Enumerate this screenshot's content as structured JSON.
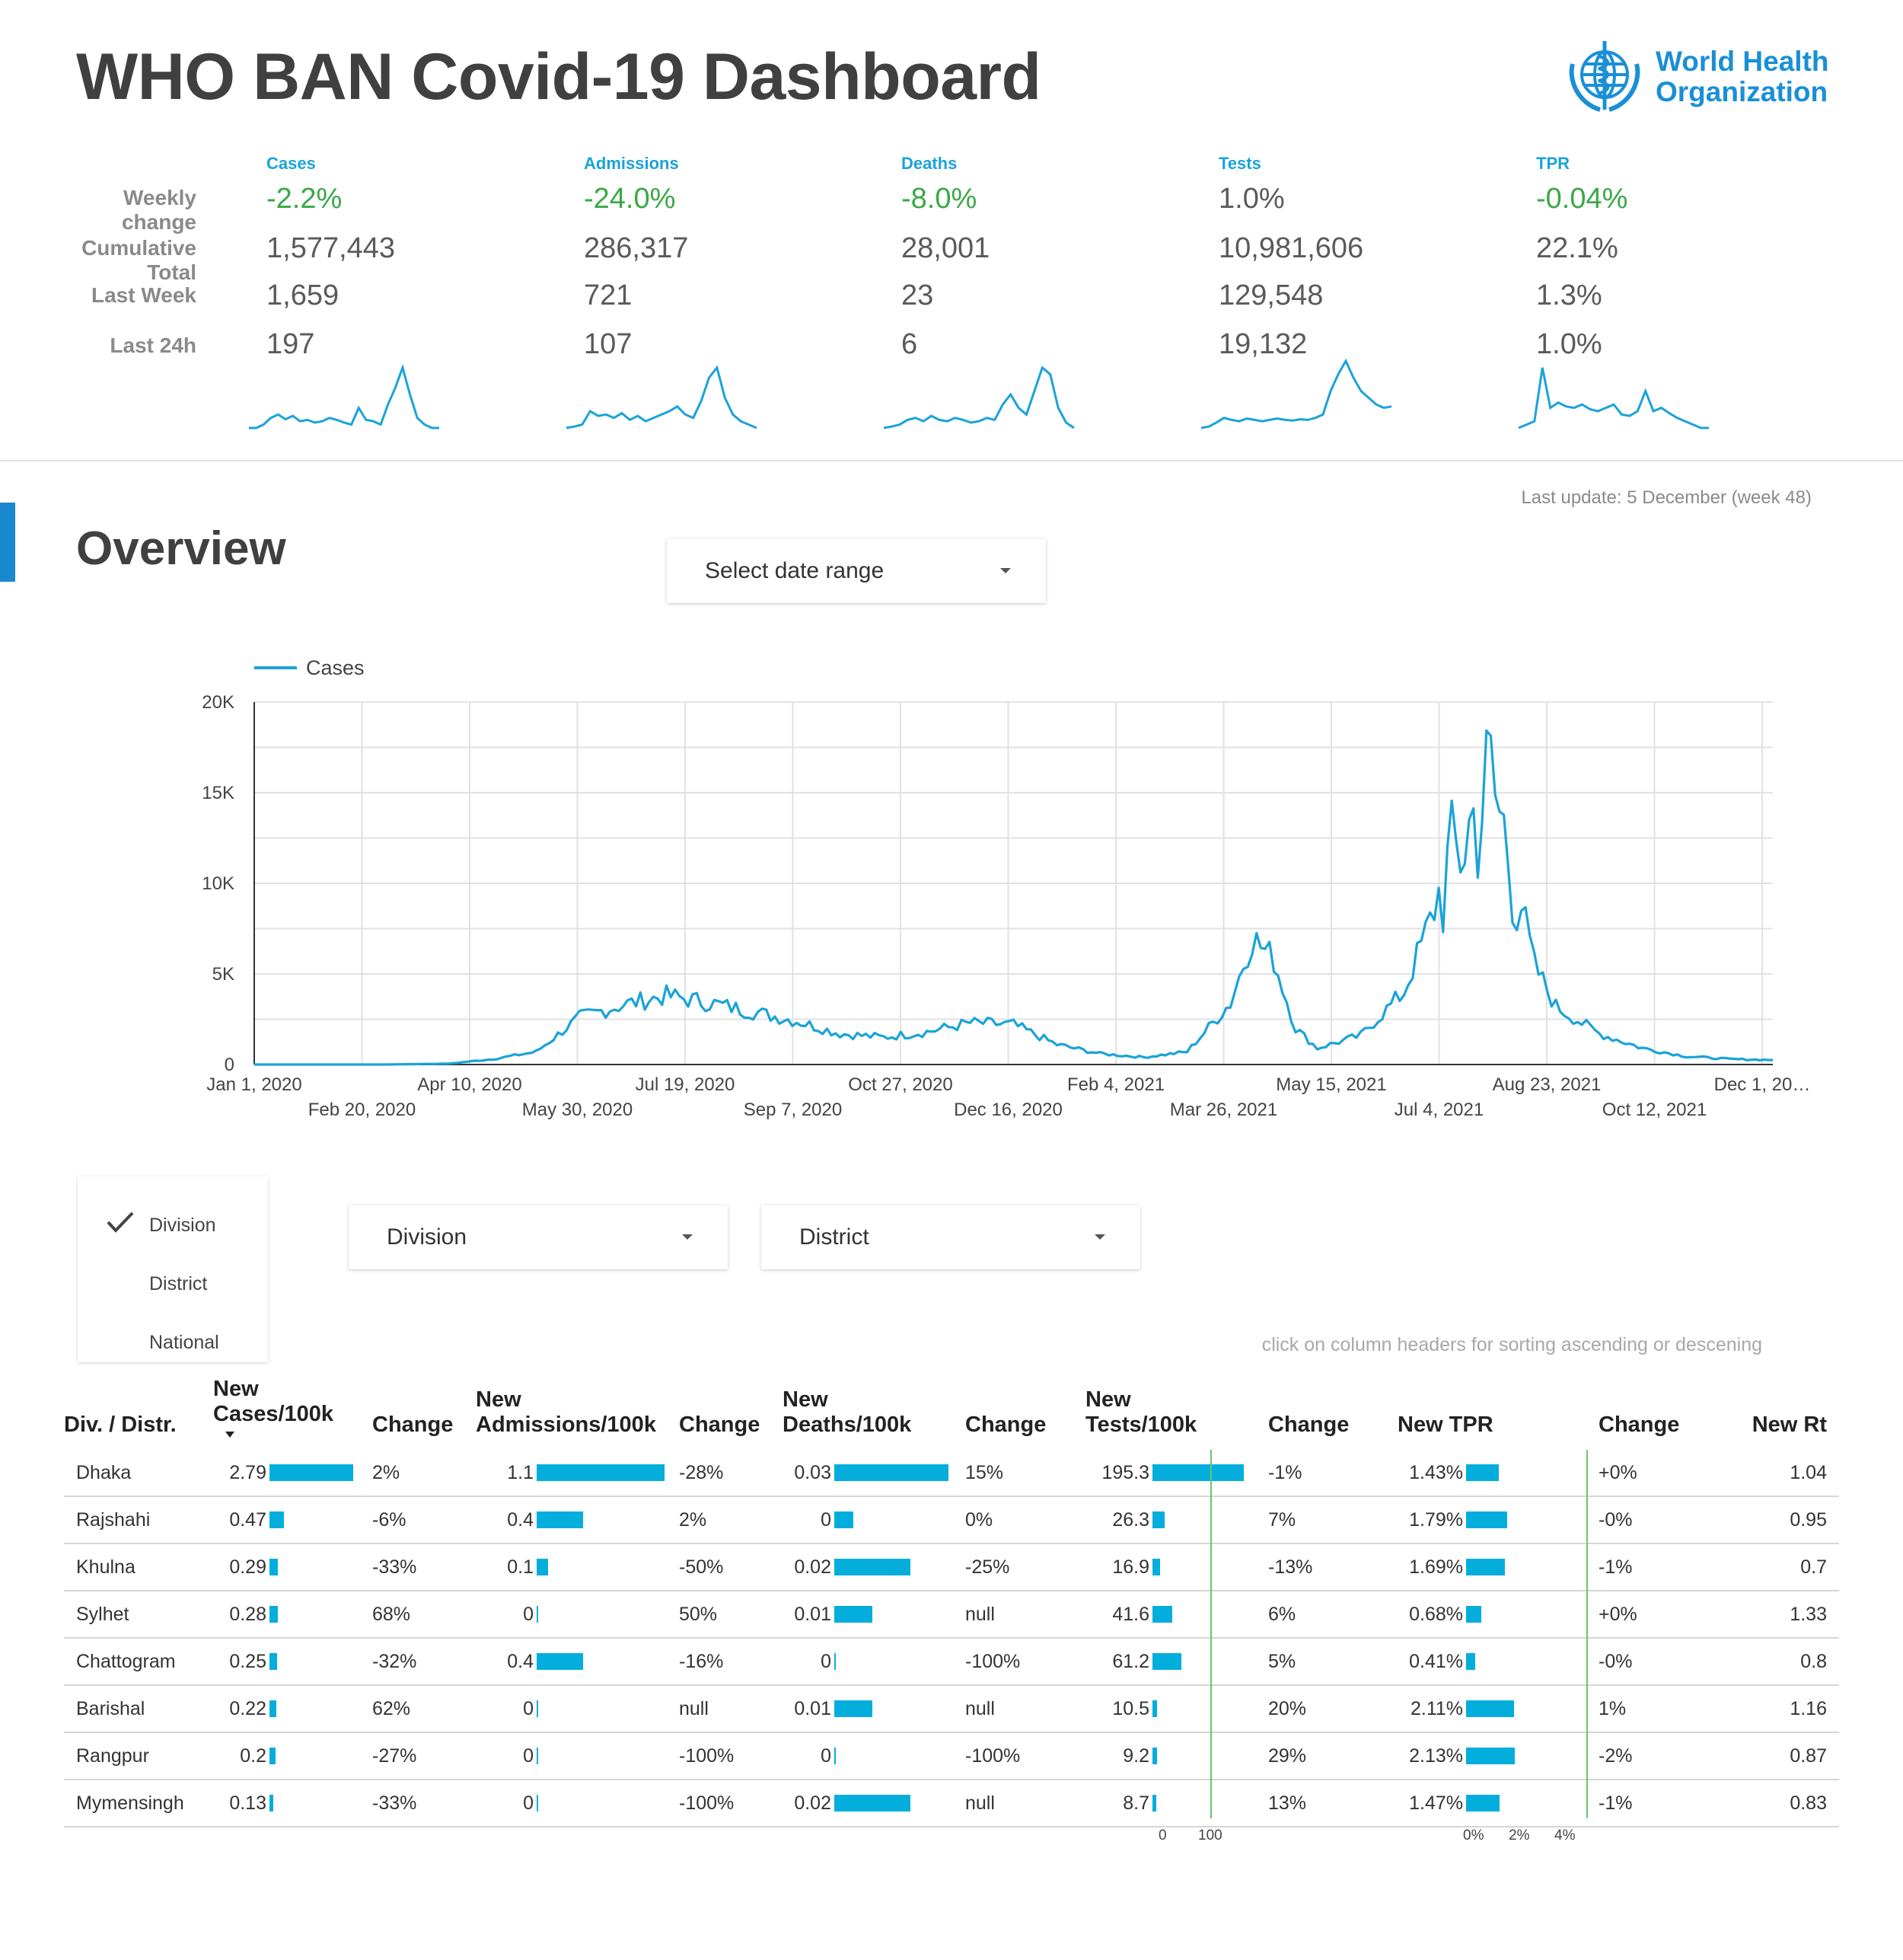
{
  "header": {
    "title": "WHO BAN Covid-19 Dashboard",
    "logo_line1": "World Health",
    "logo_line2": "Organization"
  },
  "kpi": {
    "row_labels": [
      "Weekly change",
      "Cumulative Total",
      "Last Week",
      "Last 24h"
    ],
    "columns": [
      {
        "name": "Cases",
        "weekly": "-2.2%",
        "weekly_good": true,
        "total": "1,577,443",
        "last_week": "1,659",
        "last_24h": "197"
      },
      {
        "name": "Admissions",
        "weekly": "-24.0%",
        "weekly_good": true,
        "total": "286,317",
        "last_week": "721",
        "last_24h": "107"
      },
      {
        "name": "Deaths",
        "weekly": "-8.0%",
        "weekly_good": true,
        "total": "28,001",
        "last_week": "23",
        "last_24h": "6"
      },
      {
        "name": "Tests",
        "weekly": "1.0%",
        "weekly_good": false,
        "total": "10,981,606",
        "last_week": "129,548",
        "last_24h": "19,132"
      },
      {
        "name": "TPR",
        "weekly": "-0.04%",
        "weekly_good": true,
        "total": "22.1%",
        "last_week": "1.3%",
        "last_24h": "1.0%"
      }
    ]
  },
  "last_update": "Last update: 5 December (week 48)",
  "overview": {
    "title": "Overview",
    "date_range_label": "Select date range"
  },
  "chart_data": {
    "type": "line",
    "series": [
      {
        "name": "Cases"
      }
    ],
    "ylim": [
      0,
      20000
    ],
    "yticks": [
      "0",
      "5K",
      "10K",
      "15K",
      "20K"
    ],
    "xticks_top": [
      "Jan 1, 2020",
      "Apr 10, 2020",
      "Jul 19, 2020",
      "Oct 27, 2020",
      "Feb 4, 2021",
      "May 15, 2021",
      "Aug 23, 2021",
      "Dec 1, 20…"
    ],
    "xticks_bottom": [
      "Feb 20, 2020",
      "May 30, 2020",
      "Sep 7, 2020",
      "Dec 16, 2020",
      "Mar 26, 2021",
      "Jul 4, 2021",
      "Oct 12, 2021"
    ],
    "x": [
      "2020-01-01",
      "2020-03-01",
      "2020-03-31",
      "2020-04-20",
      "2020-05-10",
      "2020-05-30",
      "2020-06-19",
      "2020-07-09",
      "2020-07-29",
      "2020-08-18",
      "2020-09-07",
      "2020-09-27",
      "2020-10-17",
      "2020-11-06",
      "2020-11-26",
      "2020-12-16",
      "2021-01-05",
      "2021-01-25",
      "2021-02-14",
      "2021-03-06",
      "2021-03-26",
      "2021-04-05",
      "2021-04-15",
      "2021-04-25",
      "2021-05-05",
      "2021-05-25",
      "2021-06-14",
      "2021-07-04",
      "2021-07-14",
      "2021-07-24",
      "2021-08-03",
      "2021-08-13",
      "2021-08-23",
      "2021-09-12",
      "2021-10-02",
      "2021-10-22",
      "2021-11-11",
      "2021-12-01"
    ],
    "values": [
      0,
      0,
      50,
      300,
      700,
      2600,
      3300,
      3800,
      3400,
      2900,
      2400,
      1700,
      1500,
      1800,
      2300,
      2200,
      1100,
      600,
      400,
      700,
      3400,
      7000,
      5800,
      2000,
      900,
      1600,
      4000,
      10500,
      13000,
      15500,
      11000,
      5500,
      3200,
      1700,
      900,
      450,
      300,
      250
    ]
  },
  "controls": {
    "levels": [
      "Division",
      "District",
      "National"
    ],
    "division_label": "Division",
    "district_label": "District",
    "hint": "click on column headers for sorting ascending or descening"
  },
  "table": {
    "headers": [
      "Div. / Distr.",
      "New Cases/100k",
      "Change",
      "New Admissions/100k",
      "Change",
      "New Deaths/100k",
      "Change",
      "New Tests/100k",
      "Change",
      "New TPR",
      "Change",
      "New Rt"
    ],
    "rows": [
      {
        "name": "Dhaka",
        "cases": 2.79,
        "cases_label": "2.79",
        "cases_chg": "2%",
        "adm": 1.1,
        "adm_label": "1.1",
        "adm_chg": "-28%",
        "deaths": 0.03,
        "deaths_label": "0.03",
        "deaths_chg": "15%",
        "tests": 195.3,
        "tests_label": "195.3",
        "tests_chg": "-1%",
        "tpr": 1.43,
        "tpr_label": "1.43%",
        "tpr_chg": "+0%",
        "rt": "1.04"
      },
      {
        "name": "Rajshahi",
        "cases": 0.47,
        "cases_label": "0.47",
        "cases_chg": "-6%",
        "adm": 0.4,
        "adm_label": "0.4",
        "adm_chg": "2%",
        "deaths": 0.005,
        "deaths_label": "0",
        "deaths_chg": "0%",
        "tests": 26.3,
        "tests_label": "26.3",
        "tests_chg": "7%",
        "tpr": 1.79,
        "tpr_label": "1.79%",
        "tpr_chg": "-0%",
        "rt": "0.95"
      },
      {
        "name": "Khulna",
        "cases": 0.29,
        "cases_label": "0.29",
        "cases_chg": "-33%",
        "adm": 0.1,
        "adm_label": "0.1",
        "adm_chg": "-50%",
        "deaths": 0.02,
        "deaths_label": "0.02",
        "deaths_chg": "-25%",
        "tests": 16.9,
        "tests_label": "16.9",
        "tests_chg": "-13%",
        "tpr": 1.69,
        "tpr_label": "1.69%",
        "tpr_chg": "-1%",
        "rt": "0.7"
      },
      {
        "name": "Sylhet",
        "cases": 0.28,
        "cases_label": "0.28",
        "cases_chg": "68%",
        "adm": 0.0,
        "adm_label": "0",
        "adm_chg": "50%",
        "deaths": 0.01,
        "deaths_label": "0.01",
        "deaths_chg": "null",
        "tests": 41.6,
        "tests_label": "41.6",
        "tests_chg": "6%",
        "tpr": 0.68,
        "tpr_label": "0.68%",
        "tpr_chg": "+0%",
        "rt": "1.33"
      },
      {
        "name": "Chattogram",
        "cases": 0.25,
        "cases_label": "0.25",
        "cases_chg": "-32%",
        "adm": 0.4,
        "adm_label": "0.4",
        "adm_chg": "-16%",
        "deaths": 0.0,
        "deaths_label": "0",
        "deaths_chg": "-100%",
        "tests": 61.2,
        "tests_label": "61.2",
        "tests_chg": "5%",
        "tpr": 0.41,
        "tpr_label": "0.41%",
        "tpr_chg": "-0%",
        "rt": "0.8"
      },
      {
        "name": "Barishal",
        "cases": 0.22,
        "cases_label": "0.22",
        "cases_chg": "62%",
        "adm": 0.0,
        "adm_label": "0",
        "adm_chg": "null",
        "deaths": 0.01,
        "deaths_label": "0.01",
        "deaths_chg": "null",
        "tests": 10.5,
        "tests_label": "10.5",
        "tests_chg": "20%",
        "tpr": 2.11,
        "tpr_label": "2.11%",
        "tpr_chg": "1%",
        "rt": "1.16"
      },
      {
        "name": "Rangpur",
        "cases": 0.2,
        "cases_label": "0.2",
        "cases_chg": "-27%",
        "adm": 0.0,
        "adm_label": "0",
        "adm_chg": "-100%",
        "deaths": 0.0,
        "deaths_label": "0",
        "deaths_chg": "-100%",
        "tests": 9.2,
        "tests_label": "9.2",
        "tests_chg": "29%",
        "tpr": 2.13,
        "tpr_label": "2.13%",
        "tpr_chg": "-2%",
        "rt": "0.87"
      },
      {
        "name": "Mymensingh",
        "cases": 0.13,
        "cases_label": "0.13",
        "cases_chg": "-33%",
        "adm": 0.0,
        "adm_label": "0",
        "adm_chg": "-100%",
        "deaths": 0.02,
        "deaths_label": "0.02",
        "deaths_chg": "null",
        "tests": 8.7,
        "tests_label": "8.7",
        "tests_chg": "13%",
        "tpr": 1.47,
        "tpr_label": "1.47%",
        "tpr_chg": "-1%",
        "rt": "0.83"
      }
    ],
    "tests_axis": [
      "0",
      "100"
    ],
    "tpr_axis": [
      "0%",
      "2%",
      "4%"
    ],
    "bar_color": "#04aedc",
    "ref_line_color": "#6cc36c"
  },
  "colors": {
    "accent": "#1aa3d9",
    "good": "#3aa845",
    "bad": "#e04b1f",
    "brand": "#1a88cf"
  }
}
